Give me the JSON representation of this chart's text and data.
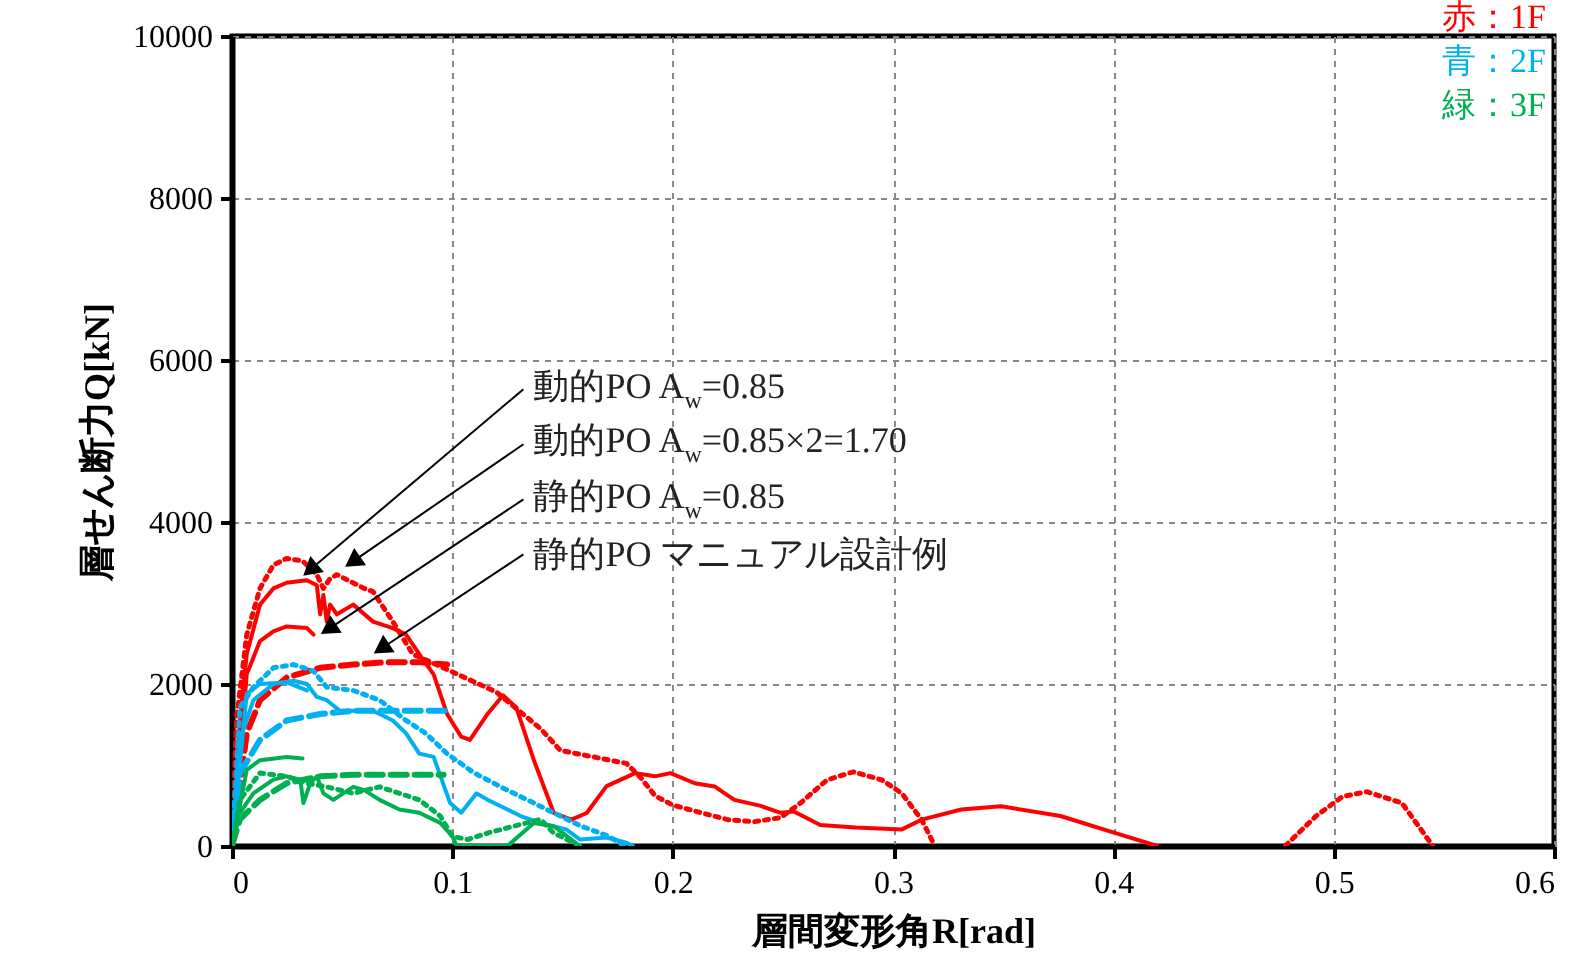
{
  "chart_data": {
    "type": "line",
    "xlabel": "層間変形角R[rad]",
    "ylabel": "層せん断力Q[kN]",
    "xlim": [
      0,
      0.6
    ],
    "ylim": [
      0,
      10000
    ],
    "xticks": [
      0,
      0.1,
      0.2,
      0.3,
      0.4,
      0.5,
      0.6
    ],
    "yticks": [
      0,
      2000,
      4000,
      6000,
      8000,
      10000
    ],
    "grid": true,
    "legend": "top right",
    "marker": "none",
    "annotations": [
      {
        "text": "動的PO A$_{w}$=0.85",
        "x": 0.032,
        "y": 3330
      },
      {
        "text": "動的PO A$_{w}$=0.85×2=1.70",
        "x": 0.051,
        "y": 3440
      },
      {
        "text": "静的PO A$_{w}$=0.85",
        "x": 0.04,
        "y": 2610
      },
      {
        "text": "静的PO マニュアル設計例",
        "x": 0.064,
        "y": 2370
      }
    ],
    "series": [
      {
        "name": "赤：1F",
        "color": "#ff0000",
        "line_style": "solid",
        "x": [
          0,
          0.0036,
          0.0067,
          0.0127,
          0.0188,
          0.0248,
          0.034,
          0.0385,
          0.04,
          0.0415,
          0.043,
          0.0445,
          0.0476,
          0.055,
          0.064,
          0.073,
          0.079,
          0.085,
          0.0915,
          0.0976,
          0.104,
          0.108,
          0.116,
          0.123,
          0.129,
          0.137,
          0.146,
          0.154,
          0.161,
          0.17,
          0.183,
          0.192,
          0.199,
          0.21,
          0.219,
          0.228,
          0.24,
          0.249,
          0.255,
          0.267,
          0.283,
          0.304,
          0.313,
          0.331,
          0.349,
          0.376,
          0.401,
          0.42
        ],
        "values": [
          0,
          1550,
          2370,
          2980,
          3180,
          3250,
          3280,
          3220,
          2860,
          3100,
          2770,
          2980,
          2860,
          2980,
          2770,
          2690,
          2610,
          2370,
          2120,
          1630,
          1350,
          1310,
          1630,
          1860,
          1710,
          1060,
          410,
          325,
          407,
          740,
          900,
          860,
          900,
          775,
          735,
          570,
          495,
          410,
          425,
          260,
          228,
          205,
          325,
          450,
          490,
          370,
          160,
          0
        ]
      },
      {
        "color": "#ff0000",
        "line_style": "dotted",
        "x": [
          0,
          0.002,
          0.0067,
          0.0127,
          0.0188,
          0.0248,
          0.032,
          0.0385,
          0.0415,
          0.0445,
          0.0476,
          0.06,
          0.064,
          0.073,
          0.082,
          0.1,
          0.12,
          0.14,
          0.149,
          0.164,
          0.179,
          0.185,
          0.192,
          0.2,
          0.213,
          0.225,
          0.237,
          0.249,
          0.258,
          0.27,
          0.282,
          0.295,
          0.304,
          0.313,
          0.319,
          0.4,
          0.478,
          0.492,
          0.504,
          0.515,
          0.531,
          0.545
        ],
        "values": [
          0,
          1550,
          2610,
          3180,
          3470,
          3550,
          3520,
          3350,
          3180,
          3300,
          3350,
          3180,
          3140,
          2770,
          2370,
          2150,
          1900,
          1450,
          1180,
          1100,
          1020,
          860,
          620,
          505,
          410,
          325,
          300,
          350,
          530,
          815,
          915,
          815,
          650,
          325,
          0,
          null,
          0,
          370,
          610,
          670,
          530,
          0
        ]
      },
      {
        "color": "#ff0000",
        "line_style": "solid",
        "x": [
          0,
          0.0067,
          0.0127,
          0.0188,
          0.0248,
          0.034,
          0.037
        ],
        "values": [
          0,
          2120,
          2530,
          2650,
          2710,
          2690,
          2610
        ]
      },
      {
        "color": "#ff0000",
        "line_style": "dashed",
        "x": [
          0,
          0.0067,
          0.0127,
          0.0248,
          0.04,
          0.055,
          0.07,
          0.085,
          0.0976
        ],
        "values": [
          0,
          1390,
          1800,
          2080,
          2200,
          2240,
          2270,
          2270,
          2240
        ]
      },
      {
        "name": "青：2F",
        "color": "#00b0f0",
        "line_style": "solid",
        "x": [
          0,
          0.0036,
          0.0097,
          0.0188,
          0.028,
          0.034,
          0.0385,
          0.043,
          0.049,
          0.055,
          0.064,
          0.073,
          0.079,
          0.085,
          0.0915,
          0.099,
          0.104,
          0.111,
          0.116,
          0.122,
          0.131,
          0.14,
          0.152,
          0.158,
          0.17,
          0.179,
          0.182
        ],
        "values": [
          0,
          1310,
          1800,
          2000,
          2040,
          2000,
          1840,
          1800,
          1670,
          1670,
          1670,
          1550,
          1390,
          1140,
          1100,
          530,
          410,
          650,
          570,
          490,
          370,
          285,
          200,
          80,
          105,
          40,
          0
        ]
      },
      {
        "color": "#00b0f0",
        "line_style": "dotted",
        "x": [
          0,
          0.0036,
          0.0097,
          0.0188,
          0.028,
          0.037,
          0.043,
          0.055,
          0.067,
          0.079,
          0.088,
          0.0976,
          0.11,
          0.122,
          0.134,
          0.146,
          0.158,
          0.17,
          0.176,
          0.178
        ],
        "values": [
          0,
          1710,
          1960,
          2200,
          2240,
          2160,
          1960,
          1920,
          1800,
          1550,
          1390,
          1140,
          900,
          730,
          570,
          410,
          250,
          130,
          40,
          0
        ]
      },
      {
        "color": "#00b0f0",
        "line_style": "solid",
        "x": [
          0,
          0.0067,
          0.0127,
          0.0248,
          0.034
        ],
        "values": [
          0,
          1880,
          2000,
          2020,
          1920
        ]
      },
      {
        "color": "#00b0f0",
        "line_style": "dashed",
        "x": [
          0,
          0.0036,
          0.0127,
          0.0248,
          0.04,
          0.055,
          0.07,
          0.085,
          0.0976
        ],
        "values": [
          0,
          900,
          1310,
          1550,
          1630,
          1670,
          1670,
          1670,
          1670
        ]
      },
      {
        "name": "緑：3F",
        "color": "#00b050",
        "line_style": "solid",
        "x": [
          0,
          0.0036,
          0.0097,
          0.0188,
          0.0248,
          0.031,
          0.0324,
          0.0355,
          0.0385,
          0.0415,
          0.046,
          0.055,
          0.06,
          0.067,
          0.076,
          0.085,
          0.0945,
          0.1,
          0.102,
          0.125,
          0.137,
          0.146,
          0.156
        ],
        "values": [
          0,
          410,
          650,
          820,
          860,
          820,
          530,
          775,
          860,
          650,
          570,
          730,
          690,
          570,
          450,
          410,
          285,
          120,
          0,
          0,
          285,
          245,
          40
        ]
      },
      {
        "color": "#00b050",
        "line_style": "dotted",
        "x": [
          0,
          0.0036,
          0.0127,
          0.0248,
          0.034,
          0.043,
          0.055,
          0.067,
          0.076,
          0.085,
          0.0945,
          0.1,
          0.107,
          0.116,
          0.128,
          0.14,
          0.146,
          0.158
        ],
        "values": [
          0,
          570,
          900,
          860,
          775,
          730,
          650,
          730,
          650,
          570,
          370,
          120,
          80,
          160,
          245,
          330,
          160,
          0
        ]
      },
      {
        "color": "#00b050",
        "line_style": "solid",
        "x": [
          0,
          0.0067,
          0.0127,
          0.0248,
          0.032
        ],
        "values": [
          0,
          940,
          1060,
          1100,
          1080
        ]
      },
      {
        "color": "#00b050",
        "line_style": "dashed",
        "x": [
          0,
          0.0036,
          0.0127,
          0.0248,
          0.04,
          0.055,
          0.07,
          0.085,
          0.096
        ],
        "values": [
          0,
          330,
          570,
          775,
          860,
          880,
          880,
          880,
          880
        ]
      }
    ]
  }
}
